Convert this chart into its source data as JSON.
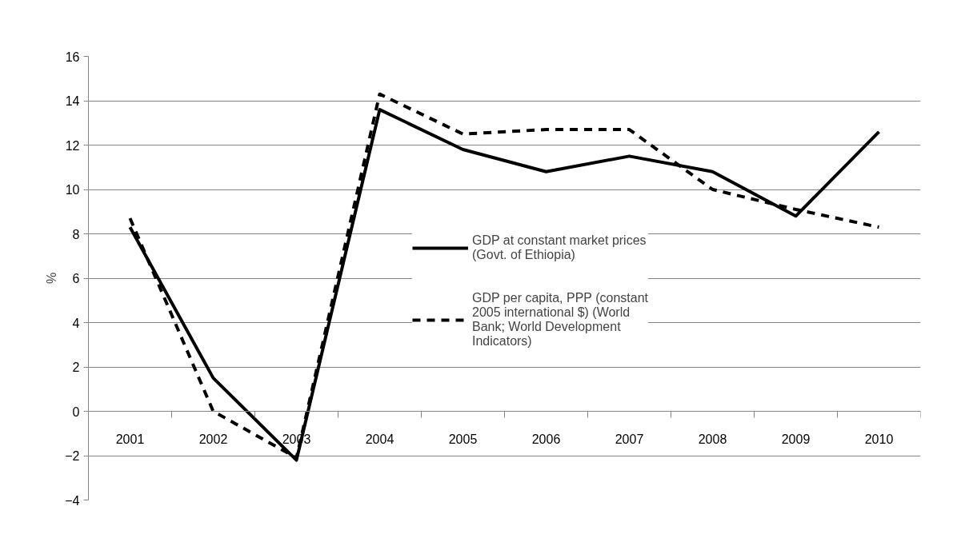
{
  "chart_data": {
    "type": "line",
    "categories": [
      "2001",
      "2002",
      "2003",
      "2004",
      "2005",
      "2006",
      "2007",
      "2008",
      "2009",
      "2010"
    ],
    "ylabel": "%",
    "series": [
      {
        "name": "GDP at constant market prices (Govt. of Ethiopia)",
        "color": "#000000",
        "line_style": "solid",
        "values": [
          8.3,
          1.5,
          -2.2,
          13.6,
          11.8,
          10.8,
          11.5,
          10.8,
          8.8,
          12.6
        ]
      },
      {
        "name": "GDP per capita, PPP (constant 2005 international $) (World Bank; World Development Indicators)",
        "color": "#000000",
        "line_style": "dashed",
        "values": [
          8.7,
          0.0,
          -2.1,
          14.3,
          12.5,
          12.7,
          12.7,
          10.0,
          9.1,
          8.3
        ]
      }
    ],
    "ylim": [
      -4,
      16
    ],
    "yticks": [
      -4,
      -2,
      0,
      2,
      4,
      6,
      8,
      10,
      12,
      14,
      16
    ],
    "grid": "y",
    "legend": "center",
    "marker": "none"
  }
}
